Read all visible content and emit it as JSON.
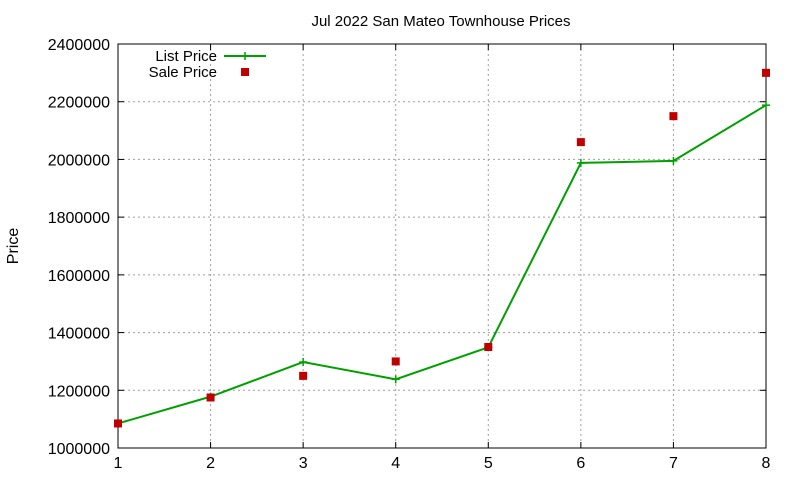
{
  "chart_data": {
    "type": "line",
    "title": "Jul 2022 San Mateo Townhouse Prices",
    "xlabel": "",
    "ylabel": "Price",
    "x": [
      1,
      2,
      3,
      4,
      5,
      6,
      7,
      8
    ],
    "xlim": [
      1,
      8
    ],
    "ylim": [
      1000000,
      2400000
    ],
    "xticks": [
      "1",
      "2",
      "3",
      "4",
      "5",
      "6",
      "7",
      "8"
    ],
    "yticks": [
      "1000000",
      "1200000",
      "1400000",
      "1600000",
      "1800000",
      "2000000",
      "2200000",
      "2400000"
    ],
    "grid": true,
    "legend_position": "top-left",
    "series": [
      {
        "name": "List Price",
        "style": "line-with-plus-markers",
        "color": "#00a000",
        "values": [
          1085000,
          1178000,
          1298000,
          1238000,
          1349000,
          1988000,
          1995000,
          2188000
        ]
      },
      {
        "name": "Sale Price",
        "style": "square-markers",
        "color": "#c00000",
        "values": [
          1085000,
          1175000,
          1250000,
          1300000,
          1350000,
          2060000,
          2150000,
          2300000
        ]
      }
    ]
  }
}
